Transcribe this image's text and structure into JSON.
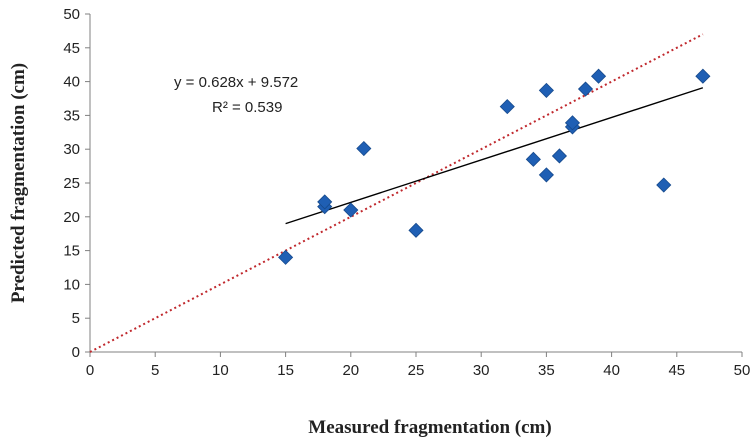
{
  "chart_data": {
    "type": "scatter",
    "xlabel": "Measured fragmentation (cm)",
    "ylabel": "Predicted fragmentation (cm)",
    "xlim": [
      0,
      50
    ],
    "ylim": [
      0,
      50
    ],
    "x_ticks": [
      "0",
      "5",
      "10",
      "15",
      "20",
      "25",
      "30",
      "35",
      "40",
      "45",
      "50"
    ],
    "y_ticks": [
      "0",
      "5",
      "10",
      "15",
      "20",
      "25",
      "30",
      "35",
      "40",
      "45",
      "50"
    ],
    "grid": false,
    "series": [
      {
        "marker_color": "#1f5fb4",
        "points": [
          {
            "x": 15,
            "y": 14
          },
          {
            "x": 18,
            "y": 21.5
          },
          {
            "x": 18,
            "y": 22.2
          },
          {
            "x": 20,
            "y": 21
          },
          {
            "x": 21,
            "y": 30.1
          },
          {
            "x": 25,
            "y": 18
          },
          {
            "x": 32,
            "y": 36.3
          },
          {
            "x": 34,
            "y": 28.5
          },
          {
            "x": 35,
            "y": 38.7
          },
          {
            "x": 35,
            "y": 26.2
          },
          {
            "x": 36,
            "y": 29
          },
          {
            "x": 37,
            "y": 33.3
          },
          {
            "x": 37,
            "y": 33.9
          },
          {
            "x": 38,
            "y": 38.9
          },
          {
            "x": 39,
            "y": 40.8
          },
          {
            "x": 44,
            "y": 24.7
          },
          {
            "x": 47,
            "y": 40.8
          }
        ]
      }
    ],
    "trendline": {
      "equation": "y = 0.628x + 9.572",
      "r_squared": "R² = 0.539",
      "slope": 0.628,
      "intercept": 9.572,
      "x_range": [
        15,
        47
      ],
      "color": "#000000"
    },
    "reference_line": {
      "style": "dotted",
      "color": "#c0282d",
      "from": [
        0,
        0
      ],
      "to": [
        50,
        50
      ]
    }
  }
}
